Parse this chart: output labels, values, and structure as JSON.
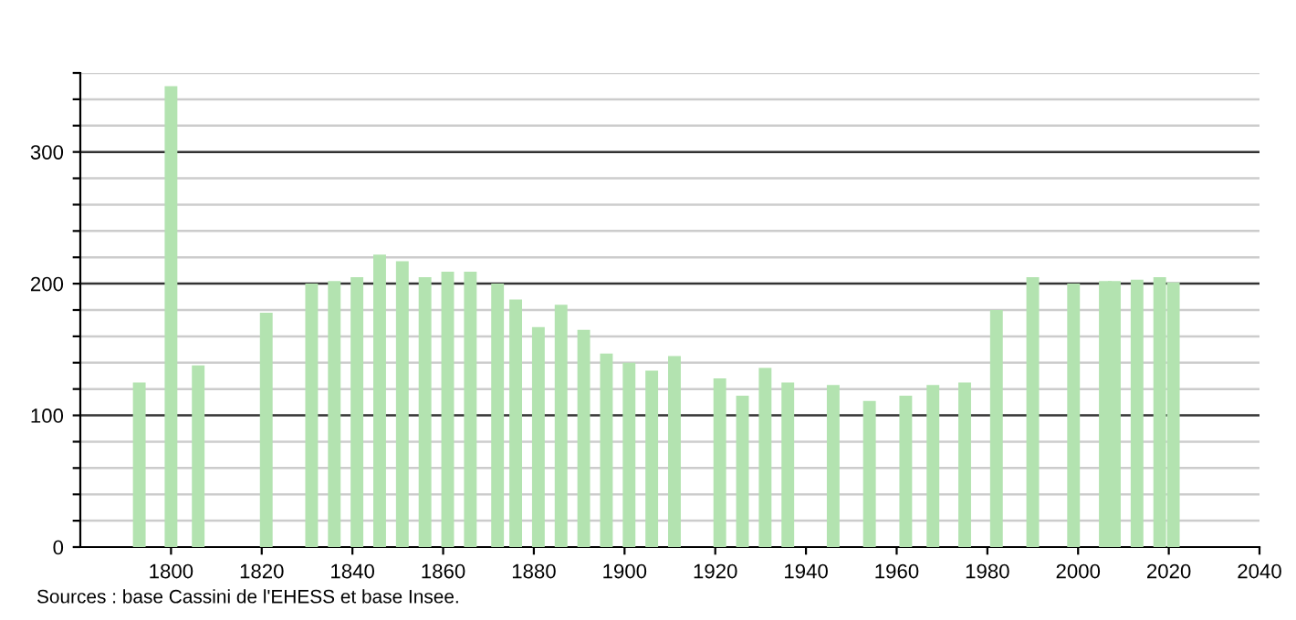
{
  "chart_data": {
    "type": "bar",
    "color": "#b3e3b0",
    "x": [
      1793,
      1800,
      1806,
      1821,
      1831,
      1836,
      1841,
      1846,
      1851,
      1856,
      1861,
      1866,
      1872,
      1876,
      1881,
      1886,
      1891,
      1896,
      1901,
      1906,
      1911,
      1921,
      1926,
      1931,
      1936,
      1946,
      1954,
      1962,
      1968,
      1975,
      1982,
      1990,
      1999,
      2006,
      2008,
      2013,
      2018,
      2021
    ],
    "values": [
      125,
      350,
      138,
      178,
      200,
      202,
      205,
      222,
      217,
      205,
      209,
      209,
      200,
      188,
      167,
      184,
      165,
      147,
      140,
      134,
      145,
      128,
      115,
      136,
      125,
      123,
      111,
      115,
      123,
      125,
      180,
      205,
      200,
      202,
      202,
      203,
      205,
      201
    ],
    "xlim": [
      1780,
      2040
    ],
    "xticks": [
      1800,
      1820,
      1840,
      1860,
      1880,
      1900,
      1920,
      1940,
      1960,
      1980,
      2000,
      2020,
      2040
    ],
    "ylim": [
      0,
      360
    ],
    "yticks": [
      0,
      {
        "value": 20,
        "label": null
      },
      {
        "value": 40,
        "label": null
      },
      {
        "value": 60,
        "label": null
      },
      {
        "value": 80,
        "label": null
      },
      100,
      {
        "value": 120,
        "label": null
      },
      {
        "value": 140,
        "label": null
      },
      {
        "value": 160,
        "label": null
      },
      {
        "value": 180,
        "label": null
      },
      200,
      {
        "value": 220,
        "label": null
      },
      {
        "value": 240,
        "label": null
      },
      {
        "value": 260,
        "label": null
      },
      {
        "value": 280,
        "label": null
      },
      300,
      {
        "value": 320,
        "label": null
      },
      {
        "value": 340,
        "label": null
      },
      {
        "value": 360,
        "label": null
      }
    ],
    "grid": "y",
    "annotations": [
      "Sources : base Cassini de l'EHESS et base Insee."
    ]
  }
}
